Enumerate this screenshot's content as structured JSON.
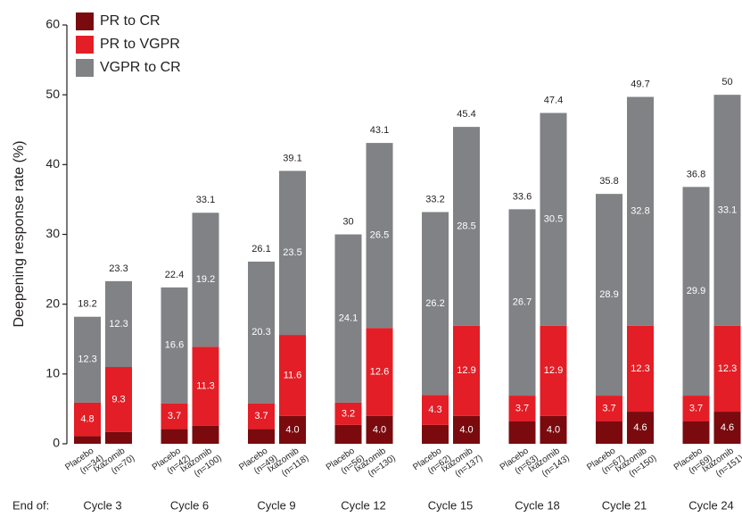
{
  "chart_data": {
    "type": "stacked-bar",
    "y_label": "Deepening response rate (%)",
    "group_prefix": "End of:",
    "groups": [
      "Cycle 3",
      "Cycle 6",
      "Cycle 9",
      "Cycle 12",
      "Cycle 15",
      "Cycle 18",
      "Cycle 21",
      "Cycle 24"
    ],
    "categories": [
      [
        "Placebo",
        "(n=34)"
      ],
      [
        "Ixazomib",
        "(n=70)"
      ],
      [
        "Placebo",
        "(n=42)"
      ],
      [
        "Ixazomib",
        "(n=100)"
      ],
      [
        "Placebo",
        "(n=49)"
      ],
      [
        "Ixazomib",
        "(n=118)"
      ],
      [
        "Placebo",
        "(n=56)"
      ],
      [
        "Ixazomib",
        "(n=130)"
      ],
      [
        "Placebo",
        "(n=62)"
      ],
      [
        "Ixazomib",
        "(n=137)"
      ],
      [
        "Placebo",
        "(n=63)"
      ],
      [
        "Ixazomib",
        "(n=143)"
      ],
      [
        "Placebo",
        "(n=67)"
      ],
      [
        "Ixazomib",
        "(n=150)"
      ],
      [
        "Placebo",
        "(n=69)"
      ],
      [
        "Ixazomib",
        "(n=151)"
      ]
    ],
    "series": [
      {
        "name": "PR to CR",
        "color": "#7a0a0e",
        "values": [
          1.1,
          1.7,
          2.1,
          2.6,
          2.1,
          4.0,
          2.7,
          4.0,
          2.7,
          4.0,
          3.2,
          4.0,
          3.2,
          4.6,
          3.2,
          4.6
        ],
        "value_labels": [
          null,
          null,
          null,
          null,
          null,
          "4.0",
          null,
          "4.0",
          null,
          "4.0",
          null,
          "4.0",
          null,
          "4.6",
          null,
          "4.6"
        ]
      },
      {
        "name": "PR to VGPR",
        "color": "#e31e26",
        "values": [
          4.8,
          9.3,
          3.7,
          11.3,
          3.7,
          11.6,
          3.2,
          12.6,
          4.3,
          12.9,
          3.7,
          12.9,
          3.7,
          12.3,
          3.7,
          12.3
        ]
      },
      {
        "name": "VGPR to CR",
        "color": "#808285",
        "values": [
          12.3,
          12.3,
          16.6,
          19.2,
          20.3,
          23.5,
          24.1,
          26.5,
          26.2,
          28.5,
          26.7,
          30.5,
          28.9,
          32.8,
          29.9,
          33.1
        ]
      }
    ],
    "totals": [
      18.2,
      23.3,
      22.4,
      33.1,
      26.1,
      39.1,
      30,
      43.1,
      33.2,
      45.4,
      33.6,
      47.4,
      35.8,
      49.7,
      36.8,
      50
    ],
    "ylim": [
      0,
      60
    ],
    "yticks": [
      0,
      10,
      20,
      30,
      40,
      50,
      60
    ]
  }
}
